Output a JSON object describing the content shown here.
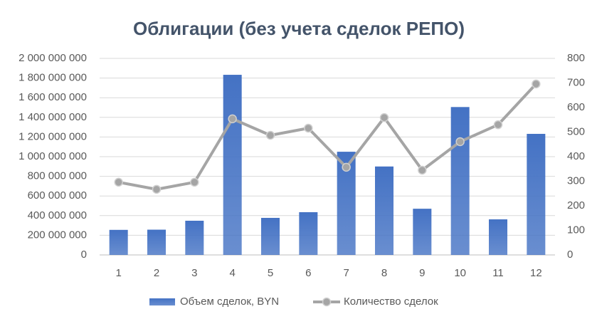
{
  "chart_data": {
    "type": "combo",
    "title": "Облигации (без учета сделок РЕПО)",
    "categories": [
      "1",
      "2",
      "3",
      "4",
      "5",
      "6",
      "7",
      "8",
      "9",
      "10",
      "11",
      "12"
    ],
    "series": [
      {
        "name": "Объем сделок, BYN",
        "type": "bar",
        "color": "#4472c4",
        "values": [
          255000000,
          257000000,
          348000000,
          1833000000,
          377000000,
          435000000,
          1050000000,
          900000000,
          470000000,
          1505000000,
          362000000,
          1232000000
        ]
      },
      {
        "name": "Количество сделок",
        "type": "line",
        "axis": "y2",
        "color": "#a5a5a5",
        "values": [
          296,
          267,
          296,
          554,
          487,
          516,
          357,
          559,
          345,
          461,
          530,
          696
        ]
      }
    ],
    "ylim": [
      0,
      2000000000
    ],
    "yticks": [
      0,
      {
        "value": 200000000,
        "label": "200 000 000"
      },
      {
        "value": 400000000,
        "label": "400 000 000"
      },
      {
        "value": 600000000,
        "label": "600 000 000"
      },
      {
        "value": 800000000,
        "label": "800 000 000"
      },
      {
        "value": 1000000000,
        "label": "1 000 000 000"
      },
      {
        "value": 1200000000,
        "label": "1 200 000 000"
      },
      {
        "value": 1400000000,
        "label": "1 400 000 000"
      },
      {
        "value": 1600000000,
        "label": "1 600 000 000"
      },
      {
        "value": 1800000000,
        "label": "1 800 000 000"
      },
      {
        "value": 2000000000,
        "label": "2 000 000 000"
      }
    ],
    "y2lim": [
      0,
      800
    ],
    "y2ticks": [
      0,
      100,
      200,
      300,
      400,
      500,
      600,
      700,
      800
    ],
    "grid": true,
    "legend": "bottom"
  }
}
